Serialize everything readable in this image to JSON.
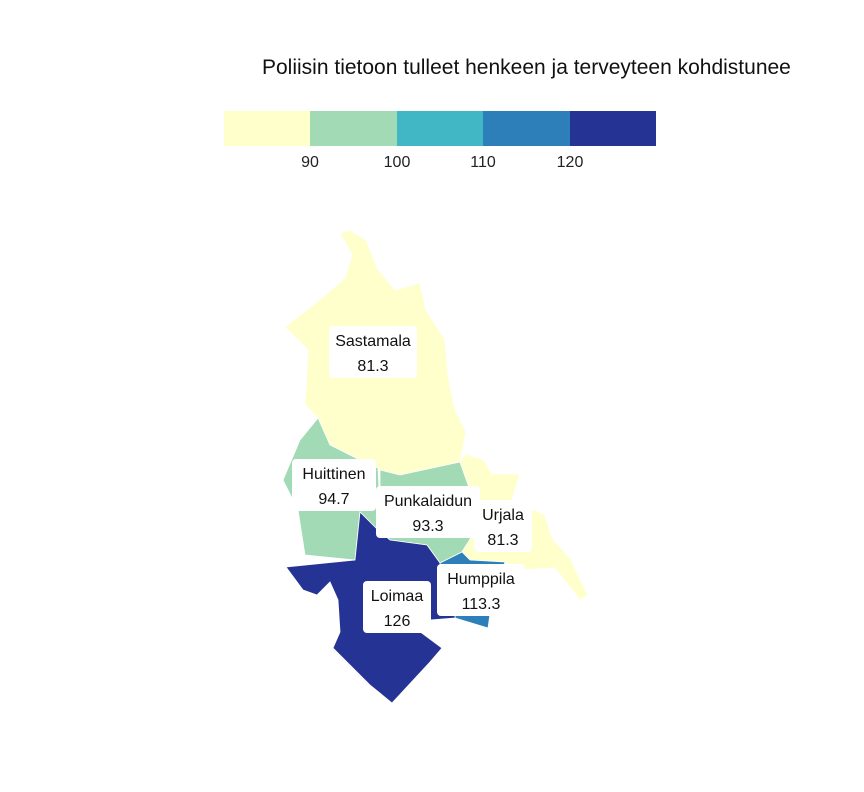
{
  "title": "Poliisin tietoon tulleet henkeen ja terveyteen kohdistunee",
  "legend": {
    "colors": [
      "#ffffcc",
      "#a1dab4",
      "#41b6c4",
      "#2c7fb8",
      "#253494"
    ],
    "ticks": [
      "90",
      "100",
      "110",
      "120"
    ]
  },
  "regions": [
    {
      "name": "Sastamala",
      "value": "81.3",
      "color": "#ffffcc"
    },
    {
      "name": "Huittinen",
      "value": "94.7",
      "color": "#a1dab4"
    },
    {
      "name": "Punkalaidun",
      "value": "93.3",
      "color": "#a1dab4"
    },
    {
      "name": "Urjala",
      "value": "81.3",
      "color": "#ffffcc"
    },
    {
      "name": "Humppila",
      "value": "113.3",
      "color": "#2c7fb8"
    },
    {
      "name": "Loimaa",
      "value": "126",
      "color": "#253494"
    }
  ]
}
